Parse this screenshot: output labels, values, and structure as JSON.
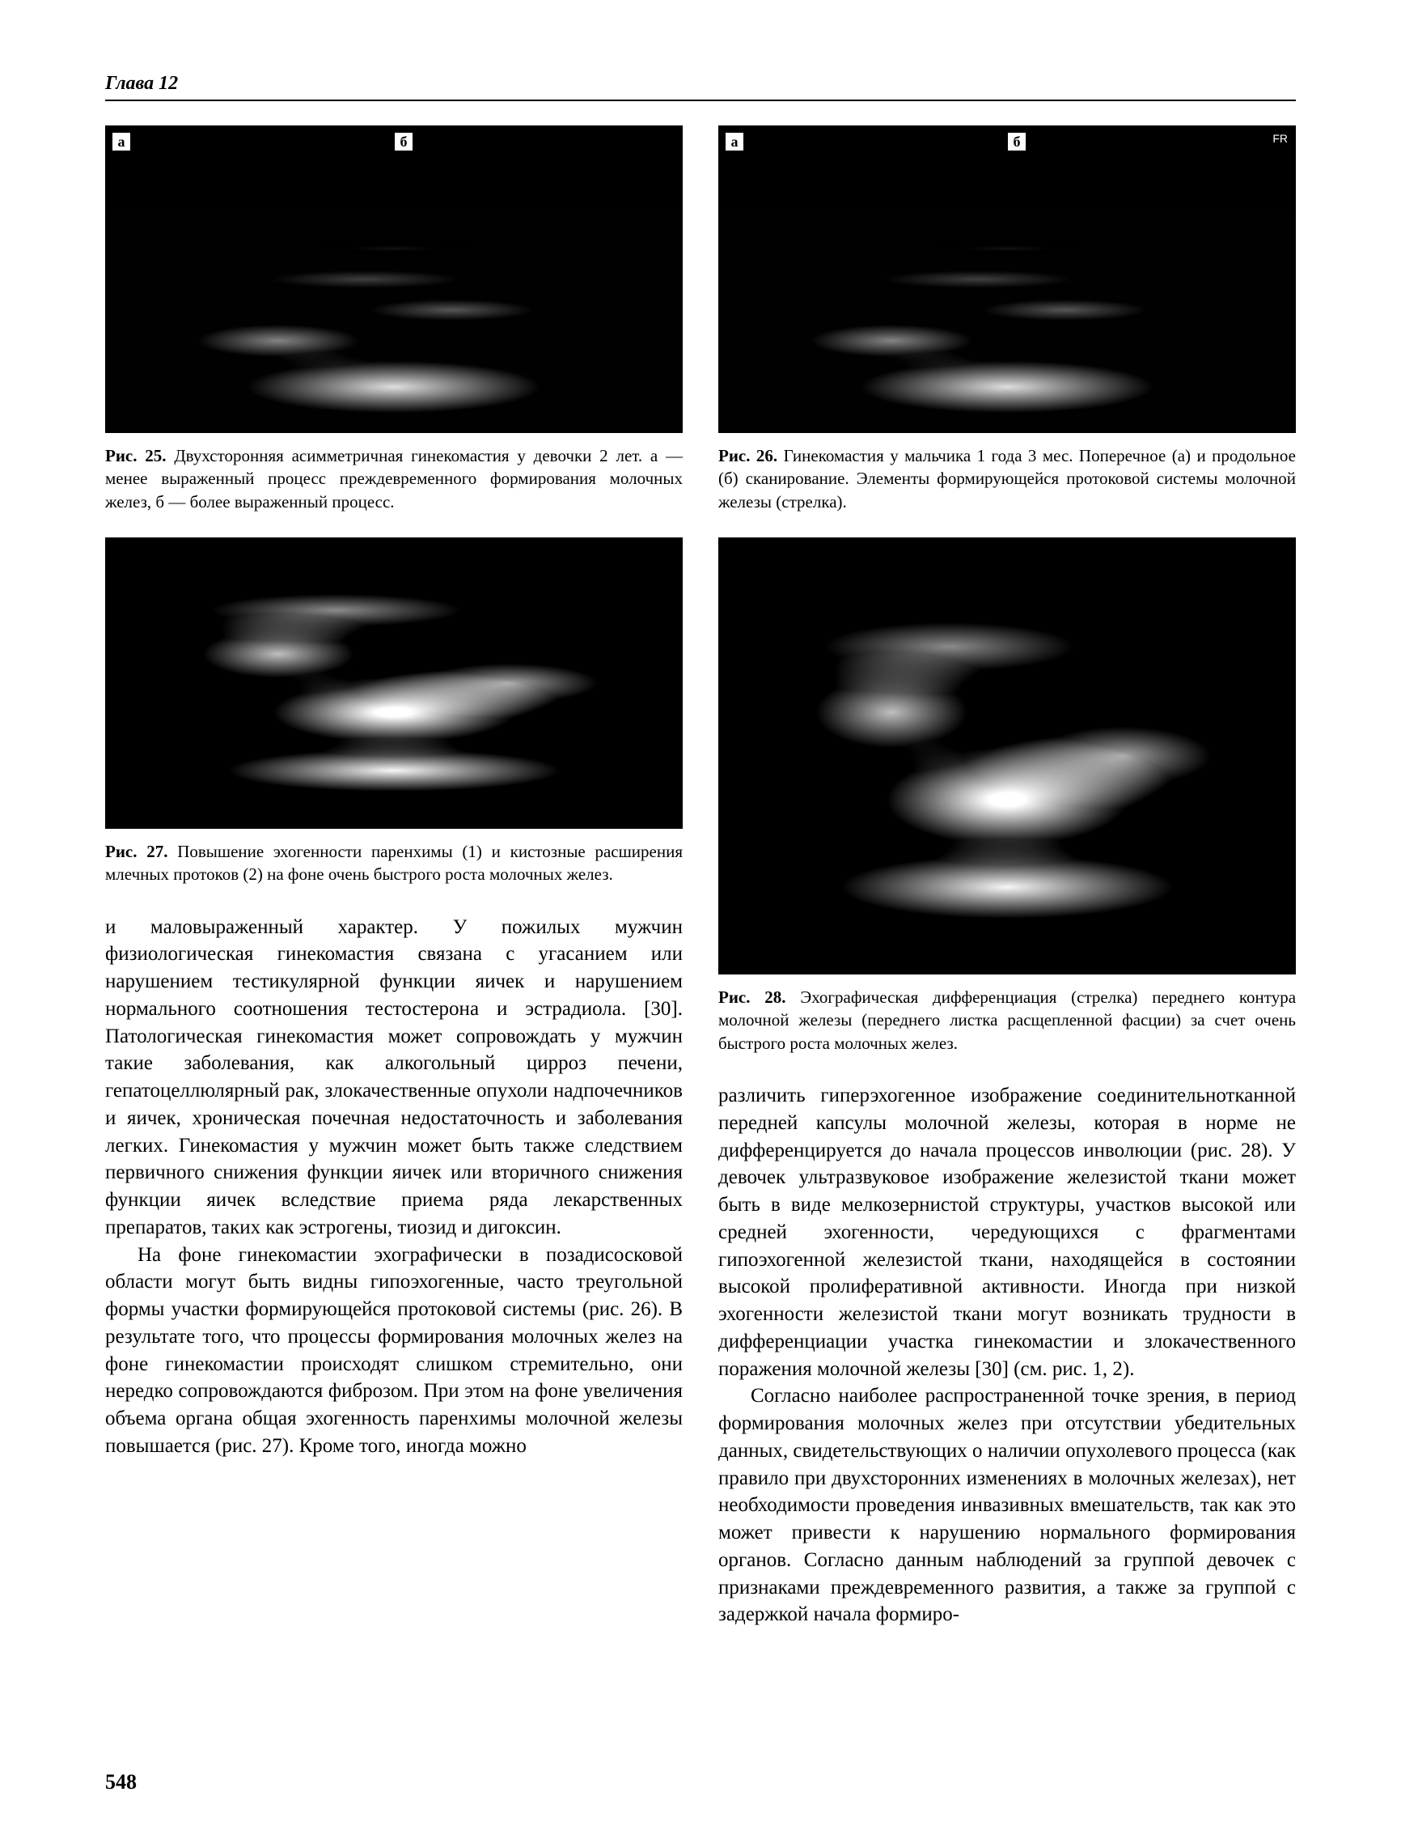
{
  "chapter_header": "Глава 12",
  "page_number": "548",
  "figures": {
    "fig25": {
      "num": "Рис. 25.",
      "caption": "Двухсторонняя асимметричная гинекомастия у девочки 2 лет. а — менее выраженный процесс преждевременного формирования молочных желез, б — более выраженный процесс.",
      "label_a": "а",
      "label_b": "б"
    },
    "fig26": {
      "num": "Рис. 26.",
      "caption": "Гинекомастия у мальчика 1 года 3 мес. Поперечное (а) и продольное (б) сканирование. Элементы формирующейся протоковой системы молочной железы (стрелка).",
      "label_a": "а",
      "label_b": "б",
      "fr": "FR"
    },
    "fig27": {
      "num": "Рис. 27.",
      "caption": "Повышение эхогенности паренхимы (1) и кистозные расширения млечных протоков (2) на фоне очень быстрого роста молочных желез."
    },
    "fig28": {
      "num": "Рис. 28.",
      "caption": "Эхографическая дифференциация (стрелка) переднего контура молочной железы (переднего листка расщепленной фасции) за счет очень быстрого роста молочных желез."
    }
  },
  "body": {
    "left_p1": "и маловыраженный характер. У пожилых мужчин физиологическая гинекомастия связана с угасанием или нарушением тестикулярной функции яичек и нарушением нормального соотношения тестостерона и эстрадиола. [30]. Патологическая гинекомастия может сопровождать у мужчин такие заболевания, как алкогольный цирроз печени, гепатоцеллюлярный рак, злокачественные опухоли надпочечников и яичек, хроническая почечная недостаточность и заболевания легких. Гинекомастия у мужчин может быть также следствием первичного снижения функции яичек или вторичного снижения функции яичек вследствие приема ряда лекарственных препаратов, таких как эстрогены, тиозид и дигоксин.",
    "left_p2": "На фоне гинекомастии эхографически в позадисосковой области могут быть видны гипоэхогенные, часто треугольной формы участки формирующейся протоковой системы (рис. 26). В результате того, что процессы формирования молочных желез на фоне гинекомастии происходят слишком стремительно, они нередко сопровождаются фиброзом. При этом на фоне увеличения объема органа общая эхогенность паренхимы молочной железы повышается (рис. 27). Кроме того, иногда можно",
    "right_p1": "различить гиперэхогенное изображение соединительнотканной передней капсулы молочной железы, которая в норме не дифференцируется до начала процессов инволюции (рис. 28). У девочек ультразвуковое изображение железистой ткани может быть в виде мелкозернистой структуры, участков высокой или средней эхогенности, чередующихся с фрагментами гипоэхогенной железистой ткани, находящейся в состоянии высокой пролиферативной активности. Иногда при низкой эхогенности железистой ткани могут возникать трудности в дифференциации участка гинекомастии и злокачественного поражения молочной железы [30] (см. рис. 1, 2).",
    "right_p2": "Согласно наиболее распространенной точке зрения, в период формирования молочных желез при отсутствии убедительных данных, свидетельствующих о наличии опухолевого процесса (как правило при двухсторонних изменениях в молочных железах), нет необходимости проведения инвазивных вмешательств, так как это может привести к нарушению нормального формирования органов. Согласно данным наблюдений за группой девочек с признаками преждевременного развития, а также за группой с задержкой начала формиро-"
  }
}
